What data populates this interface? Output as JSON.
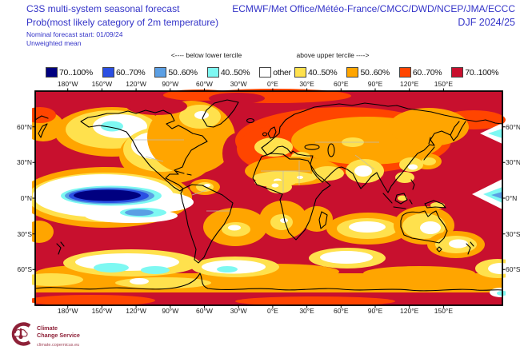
{
  "header": {
    "title_line1": "C3S multi-system seasonal forecast",
    "title_line2": "Prob(most likely category of 2m temperature)",
    "centers": "ECMWF/Met Office/Météo-France/CMCC/DWD/NCEP/JMA/ECCC",
    "period": "DJF 2024/25",
    "nominal_start": "Nominal forecast start: 01/09/24",
    "mean_type": "Unweighted mean"
  },
  "legend": {
    "below_header": "<---- below lower tercile",
    "above_header": "above upper tercile ---->",
    "below_items": [
      {
        "label": "70..100%",
        "color": "#000080"
      },
      {
        "label": "60..70%",
        "color": "#2B4FE3"
      },
      {
        "label": "50..60%",
        "color": "#5B9FE4"
      },
      {
        "label": "40..50%",
        "color": "#7EF8F2"
      },
      {
        "label": "other",
        "color": "#FFFFFF"
      }
    ],
    "above_items": [
      {
        "label": "40..50%",
        "color": "#FFE14D"
      },
      {
        "label": "50..60%",
        "color": "#FFA500"
      },
      {
        "label": "60..70%",
        "color": "#FF4500"
      },
      {
        "label": "70..100%",
        "color": "#C8102E"
      }
    ]
  },
  "axes": {
    "lon_labels": [
      "180°W",
      "150°W",
      "120°W",
      "90°W",
      "60°W",
      "30°W",
      "0°E",
      "30°E",
      "60°E",
      "90°E",
      "120°E",
      "150°E"
    ],
    "lat_labels": [
      "60°N",
      "30°N",
      "0°N",
      "30°S",
      "60°S"
    ]
  },
  "map": {
    "projection": "equirectangular world map, longitude wraps past dateline",
    "notable_regions": [
      {
        "region": "most global oceans, tropics, South America, Arctic fringe",
        "category": "above upper tercile 70..100%"
      },
      {
        "region": "Siberia and central Eurasia interior",
        "category": "above upper tercile 50..70%"
      },
      {
        "region": "Europe, Sahara/Sahel, Arabia, India, Australia, southern Africa",
        "category": "above upper tercile 40..60% with 'other' pockets"
      },
      {
        "region": "equatorial central Pacific (La Niña tongue)",
        "category": "below lower tercile up to 70..100%"
      },
      {
        "region": "Gulf of Alaska and northwest Canada",
        "category": "other / below lower tercile 40..50%"
      },
      {
        "region": "Southern Ocean patches",
        "category": "other / below lower tercile 40..50%"
      },
      {
        "region": "band near Antarctic coast",
        "category": "above upper tercile 50..60%"
      }
    ]
  },
  "logo": {
    "line1": "Climate",
    "line2": "Change Service",
    "url": "climate.copernicus.eu"
  },
  "colors": {
    "title_blue": "#3434C8",
    "coastline": "#000000",
    "country_border": "#BBBBBB",
    "cat_below70": "#000080",
    "cat_below60": "#2B4FE3",
    "cat_below50": "#5B9FE4",
    "cat_below40": "#7EF8F2",
    "cat_other": "#FFFFFF",
    "cat_above40": "#FFE14D",
    "cat_above50": "#FFA500",
    "cat_above60": "#FF4500",
    "cat_above70": "#C8102E",
    "logo_maroon": "#8E2138"
  }
}
